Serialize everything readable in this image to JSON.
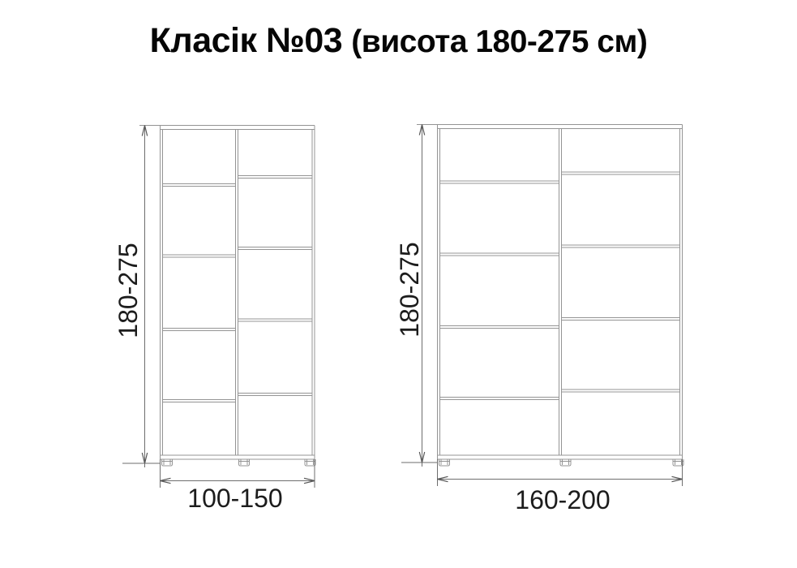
{
  "title": {
    "name": "Класік №03",
    "subtitle": "(висота 180-275 см)"
  },
  "colors": {
    "cabinet_line": "#949494",
    "dimension_line": "#6e6e6e",
    "arrow": "#555555",
    "label_text": "#1c1c1c",
    "title_text": "#060606",
    "background": "#ffffff"
  },
  "diagrams": [
    {
      "name": "small-cabinet",
      "height_label": "180-275",
      "width_label": "100-150",
      "columns": 2,
      "rows_per_column": 5,
      "feet_count": 3
    },
    {
      "name": "large-cabinet",
      "height_label": "180-275",
      "width_label": "160-200",
      "columns": 2,
      "rows_per_column": 5,
      "feet_count": 3
    }
  ]
}
